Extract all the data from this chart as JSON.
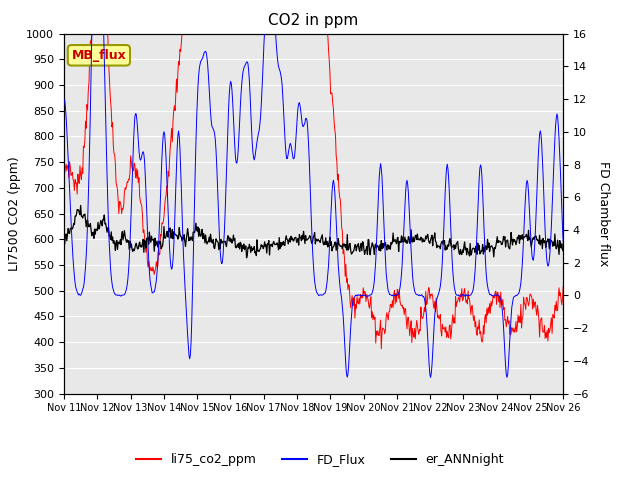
{
  "title": "CO2 in ppm",
  "ylabel_left": "LI7500 CO2 (ppm)",
  "ylabel_right": "FD Chamber flux",
  "ylim_left": [
    300,
    1000
  ],
  "ylim_right": [
    -6,
    16
  ],
  "yticks_left": [
    300,
    350,
    400,
    450,
    500,
    550,
    600,
    650,
    700,
    750,
    800,
    850,
    900,
    950,
    1000
  ],
  "yticks_right": [
    -6,
    -4,
    -2,
    0,
    2,
    4,
    6,
    8,
    10,
    12,
    14,
    16
  ],
  "xtick_labels": [
    "Nov 11",
    "Nov 12",
    "Nov 13",
    "Nov 14",
    "Nov 15",
    "Nov 16",
    "Nov 17",
    "Nov 18",
    "Nov 19",
    "Nov 20",
    "Nov 21",
    "Nov 22",
    "Nov 23",
    "Nov 24",
    "Nov 25",
    "Nov 26"
  ],
  "mb_flux_box_color": "#ffff99",
  "mb_flux_text_color": "#cc0000",
  "background_color": "#e8e8e8",
  "grid_color": "white",
  "line_colors": {
    "co2": "red",
    "flux": "blue",
    "ann": "black"
  }
}
